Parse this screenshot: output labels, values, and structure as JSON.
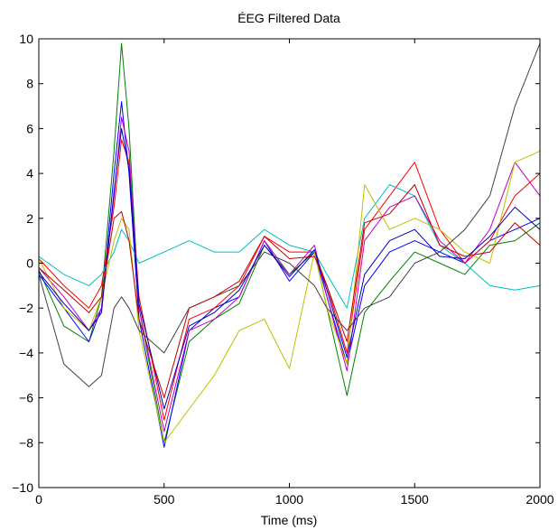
{
  "chart_data": {
    "type": "line",
    "title": "ÉEG Filtered Data",
    "xlabel": "Time (ms)",
    "ylabel": "",
    "xlim": [
      0,
      2000
    ],
    "ylim": [
      -10,
      10
    ],
    "xticks": [
      0,
      500,
      1000,
      1500,
      2000
    ],
    "xtick_labels": [
      "0",
      "500",
      "1000",
      "1500",
      "2000"
    ],
    "yticks": [
      -10,
      -8,
      -6,
      -4,
      -2,
      0,
      2,
      4,
      6,
      8,
      10
    ],
    "ytick_labels": [
      "−10",
      "−8",
      "−6",
      "−4",
      "−2",
      "0",
      "2",
      "4",
      "6",
      "8",
      "10"
    ],
    "grid": false,
    "legend": "none",
    "x": [
      0,
      100,
      200,
      250,
      300,
      330,
      360,
      400,
      500,
      600,
      700,
      800,
      900,
      1000,
      1100,
      1150,
      1230,
      1300,
      1400,
      1500,
      1600,
      1700,
      1800,
      1900,
      2000
    ],
    "series": [
      {
        "color": "#008000",
        "values": [
          -0.3,
          -2.8,
          -3.5,
          -1.5,
          5.0,
          9.8,
          6.0,
          -2.0,
          -8.0,
          -3.5,
          -2.5,
          -1.8,
          0.8,
          -0.5,
          0.5,
          -2.0,
          -5.9,
          -2.2,
          -0.8,
          0.5,
          0.0,
          -0.5,
          0.8,
          1.0,
          1.8
        ]
      },
      {
        "color": "#0000ff",
        "values": [
          -0.5,
          -2.0,
          -3.5,
          -2.0,
          4.0,
          7.2,
          4.0,
          -2.5,
          -8.2,
          -3.0,
          -2.0,
          -1.5,
          1.0,
          -0.8,
          0.5,
          -1.5,
          -4.5,
          -1.0,
          0.5,
          1.0,
          0.5,
          0.0,
          1.0,
          1.5,
          2.0
        ]
      },
      {
        "color": "#ff0000",
        "values": [
          0.2,
          -1.0,
          -2.0,
          -1.0,
          2.5,
          5.5,
          4.5,
          -1.5,
          -7.0,
          -2.5,
          -2.0,
          -1.0,
          1.2,
          0.5,
          0.5,
          -1.0,
          -4.0,
          1.5,
          3.0,
          4.5,
          1.5,
          0.0,
          1.0,
          3.0,
          4.0
        ]
      },
      {
        "color": "#00bfbf",
        "values": [
          0.3,
          -0.5,
          -1.0,
          -0.5,
          0.5,
          1.5,
          1.0,
          0.0,
          0.5,
          1.0,
          0.5,
          0.5,
          1.5,
          0.8,
          0.5,
          -0.5,
          -2.0,
          2.0,
          3.5,
          3.0,
          0.8,
          0.0,
          -1.0,
          -1.2,
          -1.0
        ]
      },
      {
        "color": "#bf00bf",
        "values": [
          -0.2,
          -1.5,
          -3.0,
          -2.0,
          3.0,
          6.5,
          5.0,
          -2.0,
          -7.5,
          -3.0,
          -2.5,
          -1.5,
          1.0,
          -0.5,
          0.8,
          -1.5,
          -4.8,
          1.0,
          2.5,
          3.0,
          1.0,
          0.0,
          1.5,
          4.5,
          3.0
        ]
      },
      {
        "color": "#bfbf00",
        "values": [
          0.2,
          -2.0,
          -3.0,
          -1.5,
          1.0,
          2.0,
          1.5,
          -3.0,
          -8.0,
          -6.5,
          -5.0,
          -3.0,
          -2.5,
          -4.7,
          0.5,
          -2.0,
          -4.5,
          3.5,
          1.5,
          2.0,
          1.5,
          0.5,
          0.0,
          4.5,
          5.0
        ]
      },
      {
        "color": "#404040",
        "values": [
          -0.5,
          -4.5,
          -5.5,
          -5.0,
          -2.0,
          -1.5,
          -2.0,
          -3.0,
          -4.0,
          -2.0,
          -1.5,
          -1.0,
          0.5,
          0.0,
          -1.0,
          -2.0,
          -3.0,
          -2.0,
          -1.5,
          0.0,
          0.5,
          1.5,
          3.0,
          7.0,
          9.8
        ]
      },
      {
        "color": "#0000bf",
        "values": [
          -0.4,
          -1.8,
          -3.0,
          -2.2,
          3.2,
          6.0,
          4.2,
          -1.8,
          -6.5,
          -2.8,
          -2.2,
          -1.2,
          0.8,
          -0.6,
          0.6,
          -1.2,
          -4.2,
          -0.5,
          1.0,
          1.5,
          0.3,
          0.2,
          1.2,
          2.5,
          1.5
        ]
      },
      {
        "color": "#bf0000",
        "values": [
          -0.2,
          -1.2,
          -2.2,
          -1.5,
          2.0,
          2.3,
          1.0,
          -2.5,
          -6.0,
          -2.0,
          -1.5,
          -0.8,
          1.2,
          0.2,
          0.3,
          -1.0,
          -3.5,
          1.8,
          2.2,
          3.5,
          0.8,
          0.3,
          0.5,
          1.8,
          0.8
        ]
      }
    ]
  }
}
